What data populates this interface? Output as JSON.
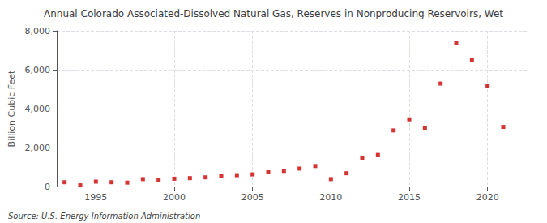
{
  "chart_data": {
    "type": "scatter",
    "title": "Annual Colorado Associated-Dissolved Natural Gas, Reserves in Nonproducing Reservoirs, Wet",
    "ylabel": "Billion Cubic Feet",
    "annotations": [
      "Source: U.S. Energy Information Administration"
    ],
    "x": [
      1993,
      1994,
      1995,
      1996,
      1997,
      1998,
      1999,
      2000,
      2001,
      2002,
      2003,
      2004,
      2005,
      2006,
      2007,
      2008,
      2009,
      2010,
      2011,
      2012,
      2013,
      2014,
      2015,
      2016,
      2017,
      2018,
      2019,
      2020,
      2021
    ],
    "values": [
      220,
      60,
      250,
      220,
      200,
      380,
      350,
      400,
      430,
      470,
      520,
      580,
      620,
      730,
      800,
      920,
      1050,
      380,
      680,
      1480,
      1620,
      2880,
      3450,
      3020,
      5290,
      7390,
      6490,
      5150,
      3060
    ],
    "color": "#cc0000",
    "marker": "square",
    "xlim": [
      1992.5,
      2022.5
    ],
    "xticks": [
      1995,
      2000,
      2005,
      2010,
      2015,
      2020
    ],
    "ylim": [
      0,
      8000
    ],
    "yticks": [
      0,
      {
        "value": 2000,
        "label": "2,000"
      },
      {
        "value": 4000,
        "label": "4,000"
      },
      {
        "value": 6000,
        "label": "6,000"
      },
      {
        "value": 8000,
        "label": "8,000"
      }
    ],
    "grid": true
  }
}
